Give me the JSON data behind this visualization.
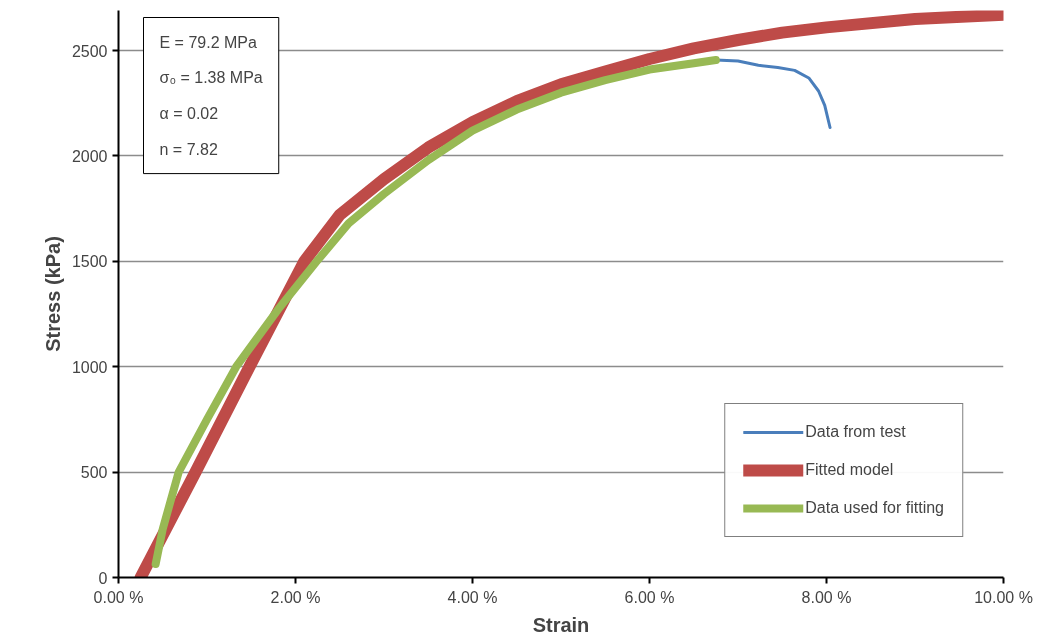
{
  "chart_data": {
    "type": "line",
    "xlabel": "Strain",
    "ylabel": "Stress (kPa)",
    "xlim": [
      0,
      10
    ],
    "ylim": [
      0,
      2690
    ],
    "xticks": [
      {
        "value": 0,
        "label": "0.00 %"
      },
      {
        "value": 2,
        "label": "2.00 %"
      },
      {
        "value": 4,
        "label": "4.00 %"
      },
      {
        "value": 6,
        "label": "6.00 %"
      },
      {
        "value": 8,
        "label": "8.00 %"
      },
      {
        "value": 10,
        "label": "10.00 %"
      }
    ],
    "yticks": [
      0,
      500,
      1000,
      1500,
      2000,
      2500
    ],
    "grid": "y",
    "legend": "bottom right",
    "marker": "none",
    "line_style": "solid",
    "annotations": [
      "E = 79.2 MPa",
      "σ₀ = 1.38 MPa",
      "α = 0.02",
      "n = 7.82"
    ],
    "series": [
      {
        "name": "Data from test",
        "color": "#4a7ebb",
        "x": [
          6.75,
          7.0,
          7.23,
          7.45,
          7.64,
          7.8,
          7.91,
          7.98,
          8.04
        ],
        "values": [
          2455,
          2450,
          2430,
          2420,
          2406,
          2370,
          2308,
          2240,
          2135
        ]
      },
      {
        "name": "Fitted model",
        "color": "#be4b48",
        "x": [
          0.25,
          0.87,
          1.48,
          2.1,
          2.5,
          3.0,
          3.5,
          4.0,
          4.5,
          5.0,
          5.5,
          6.0,
          6.5,
          7.0,
          7.5,
          8.0,
          9.0,
          10.0
        ],
        "values": [
          0,
          500,
          1000,
          1500,
          1720,
          1890,
          2040,
          2160,
          2260,
          2340,
          2400,
          2460,
          2510,
          2550,
          2585,
          2610,
          2650,
          2670
        ]
      },
      {
        "name": "Data used for fitting",
        "color": "#98b954",
        "x": [
          0.42,
          0.5,
          0.68,
          1.0,
          1.33,
          1.8,
          2.24,
          2.6,
          3.0,
          3.5,
          4.0,
          4.5,
          5.0,
          5.5,
          6.0,
          6.5,
          6.75
        ],
        "values": [
          64,
          230,
          500,
          750,
          1000,
          1270,
          1500,
          1680,
          1820,
          1980,
          2120,
          2220,
          2300,
          2360,
          2410,
          2440,
          2455
        ]
      }
    ]
  }
}
